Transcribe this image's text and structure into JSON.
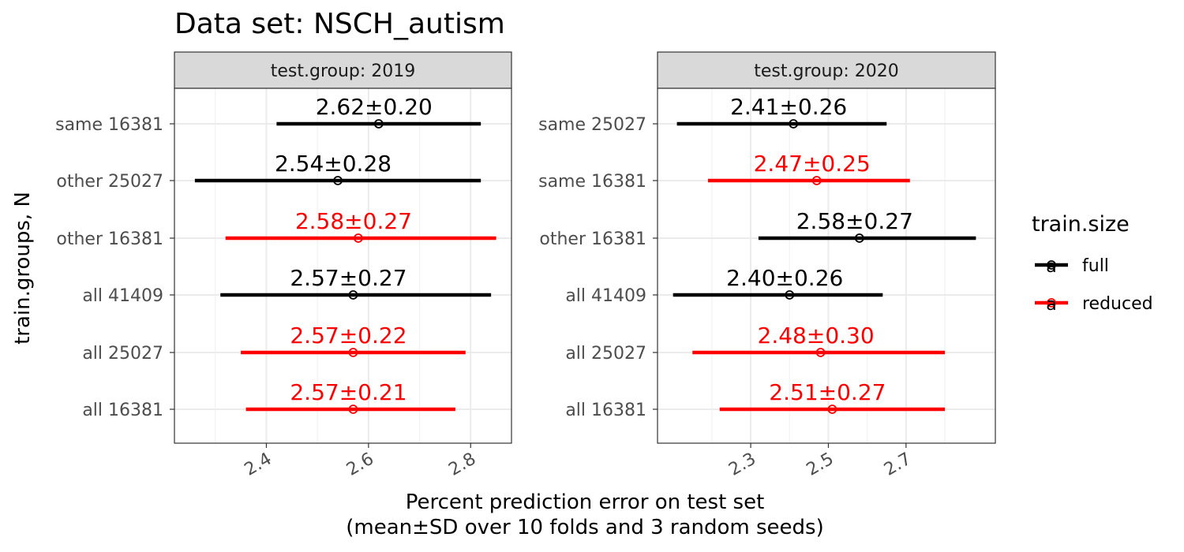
{
  "chart_data": {
    "type": "errorbar",
    "title": "Data set: NSCH_autism",
    "xlabel_line1": "Percent prediction error on test set",
    "xlabel_line2": "(mean±SD over 10 folds and 3 random seeds)",
    "ylabel": "train.groups, N",
    "legend": {
      "title": "train.size",
      "position": "right",
      "entries": [
        {
          "name": "full",
          "color": "#000000"
        },
        {
          "name": "reduced",
          "color": "#ff0000"
        }
      ]
    },
    "colors": {
      "full": "#000000",
      "reduced": "#ff0000",
      "strip_bg": "#d9d9d9",
      "grid": "#ebebeb"
    },
    "grid": true,
    "panels": [
      {
        "strip": "test.group: 2019",
        "xlim": [
          2.22,
          2.88
        ],
        "xticks": [
          {
            "value": 2.4,
            "label": "2.4"
          },
          {
            "value": 2.6,
            "label": "2.6"
          },
          {
            "value": 2.8,
            "label": "2.8"
          }
        ],
        "rows": [
          {
            "label": "same 16381",
            "train_size": "reduced",
            "mean": 2.62,
            "sd": 0.2,
            "xmin": 2.42,
            "xmax": 2.82,
            "text": "2.62±0.20",
            "text_color": "full",
            "line_color": "full"
          },
          {
            "label": "other 25027",
            "train_size": "full",
            "mean": 2.54,
            "sd": 0.28,
            "xmin": 2.26,
            "xmax": 2.82,
            "text": "2.54±0.28",
            "text_color": "full",
            "line_color": "full"
          },
          {
            "label": "other 16381",
            "train_size": "reduced",
            "mean": 2.58,
            "sd": 0.27,
            "xmin": 2.32,
            "xmax": 2.85,
            "text": "2.58±0.27",
            "text_color": "reduced",
            "line_color": "reduced"
          },
          {
            "label": "all 41409",
            "train_size": "full",
            "mean": 2.57,
            "sd": 0.27,
            "xmin": 2.31,
            "xmax": 2.84,
            "text": "2.57±0.27",
            "text_color": "full",
            "line_color": "full"
          },
          {
            "label": "all 25027",
            "train_size": "reduced",
            "mean": 2.57,
            "sd": 0.22,
            "xmin": 2.35,
            "xmax": 2.79,
            "text": "2.57±0.22",
            "text_color": "reduced",
            "line_color": "reduced"
          },
          {
            "label": "all 16381",
            "train_size": "reduced",
            "mean": 2.57,
            "sd": 0.21,
            "xmin": 2.36,
            "xmax": 2.77,
            "text": "2.57±0.21",
            "text_color": "reduced",
            "line_color": "reduced"
          }
        ]
      },
      {
        "strip": "test.group: 2020",
        "xlim": [
          2.06,
          2.93
        ],
        "xticks": [
          {
            "value": 2.3,
            "label": "2.3"
          },
          {
            "value": 2.5,
            "label": "2.5"
          },
          {
            "value": 2.7,
            "label": "2.7"
          }
        ],
        "rows": [
          {
            "label": "same 25027",
            "train_size": "full",
            "mean": 2.41,
            "sd": 0.26,
            "xmin": 2.11,
            "xmax": 2.65,
            "text": "2.41±0.26",
            "text_color": "full",
            "line_color": "full"
          },
          {
            "label": "same 16381",
            "train_size": "reduced",
            "mean": 2.47,
            "sd": 0.25,
            "xmin": 2.19,
            "xmax": 2.71,
            "text": "2.47±0.25",
            "text_color": "reduced",
            "line_color": "reduced"
          },
          {
            "label": "other 16381",
            "train_size": "reduced",
            "mean": 2.58,
            "sd": 0.27,
            "xmin": 2.32,
            "xmax": 2.88,
            "text": "2.58±0.27",
            "text_color": "full",
            "line_color": "full"
          },
          {
            "label": "all 41409",
            "train_size": "full",
            "mean": 2.4,
            "sd": 0.26,
            "xmin": 2.1,
            "xmax": 2.64,
            "text": "2.40±0.26",
            "text_color": "full",
            "line_color": "full"
          },
          {
            "label": "all 25027",
            "train_size": "reduced",
            "mean": 2.48,
            "sd": 0.3,
            "xmin": 2.15,
            "xmax": 2.8,
            "text": "2.48±0.30",
            "text_color": "reduced",
            "line_color": "reduced"
          },
          {
            "label": "all 16381",
            "train_size": "reduced",
            "mean": 2.51,
            "sd": 0.27,
            "xmin": 2.22,
            "xmax": 2.8,
            "text": "2.51±0.27",
            "text_color": "reduced",
            "line_color": "reduced"
          }
        ]
      }
    ]
  }
}
